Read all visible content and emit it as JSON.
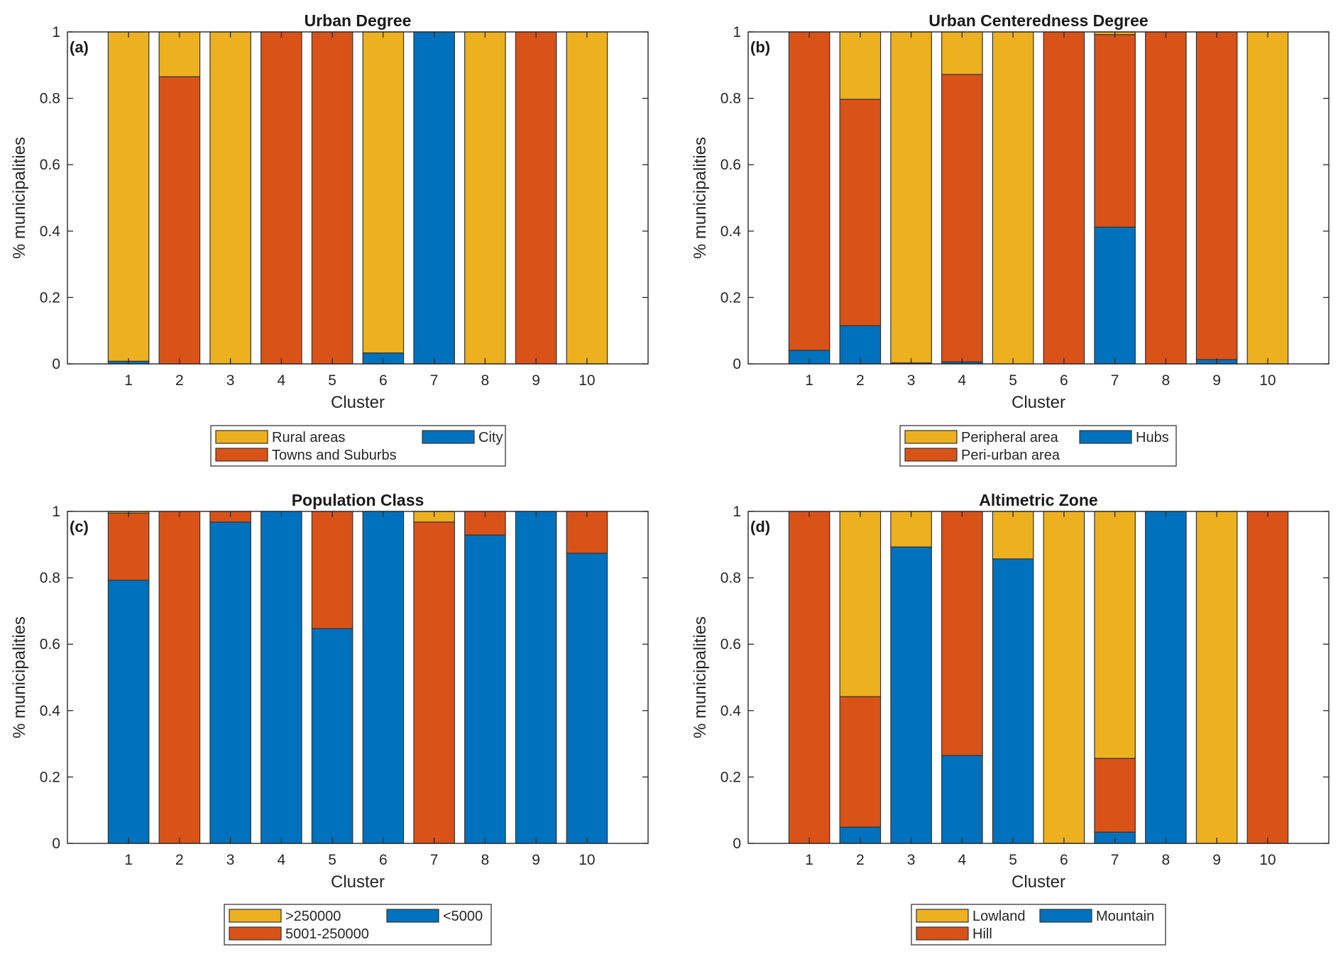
{
  "figure": {
    "colors": {
      "yellow": "#EDB120",
      "orange": "#D95319",
      "blue": "#0072BD",
      "edge": "#333333"
    }
  },
  "chart_data": [
    {
      "id": "a",
      "type": "bar",
      "stacked": true,
      "title": "Urban Degree",
      "panel_label": "(a)",
      "xlabel": "Cluster",
      "ylabel": "% municipalities",
      "categories": [
        "1",
        "2",
        "3",
        "4",
        "5",
        "6",
        "7",
        "8",
        "9",
        "10"
      ],
      "ylim": [
        0,
        1
      ],
      "xlim": [
        -0.2,
        11.2
      ],
      "yticks": [
        0,
        0.2,
        0.4,
        0.6,
        0.8,
        1
      ],
      "ytick_labels": [
        "0",
        "0.2",
        "0.4",
        "0.6",
        "0.8",
        "1"
      ],
      "grid": false,
      "legend_position": "below-center",
      "legend_order": [
        0,
        2,
        1
      ],
      "series": [
        {
          "name": "City",
          "color": "blue",
          "values": [
            0.008,
            0,
            0,
            0,
            0,
            0.033,
            1,
            0,
            0,
            0
          ]
        },
        {
          "name": "Towns and Suburbs",
          "color": "orange",
          "values": [
            0,
            0.865,
            0,
            1,
            1,
            0,
            0,
            0,
            1,
            0
          ]
        },
        {
          "name": "Rural areas",
          "color": "yellow",
          "values": [
            0.992,
            0.135,
            1,
            0,
            0,
            0.967,
            0,
            1,
            0,
            1
          ]
        }
      ]
    },
    {
      "id": "b",
      "type": "bar",
      "stacked": true,
      "title": "Urban Centeredness Degree",
      "panel_label": "(b)",
      "xlabel": "Cluster",
      "ylabel": "% municipalities",
      "categories": [
        "1",
        "2",
        "3",
        "4",
        "5",
        "6",
        "7",
        "8",
        "9",
        "10"
      ],
      "ylim": [
        0,
        1
      ],
      "xlim": [
        -0.2,
        11.2
      ],
      "yticks": [
        0,
        0.2,
        0.4,
        0.6,
        0.8,
        1
      ],
      "ytick_labels": [
        "0",
        "0.2",
        "0.4",
        "0.6",
        "0.8",
        "1"
      ],
      "grid": false,
      "legend_position": "below-center",
      "series": [
        {
          "name": "Hubs",
          "color": "blue",
          "values": [
            0.041,
            0.115,
            0.003,
            0.006,
            0,
            0,
            0.412,
            0,
            0.013,
            0
          ]
        },
        {
          "name": "Peri-urban area",
          "color": "orange",
          "values": [
            0.959,
            0.682,
            0,
            0.866,
            0,
            1,
            0.58,
            1,
            0.987,
            0
          ]
        },
        {
          "name": "Peripheral area",
          "color": "yellow",
          "values": [
            0,
            0.203,
            0.997,
            0.128,
            1,
            0,
            0.008,
            0,
            0,
            1
          ]
        }
      ]
    },
    {
      "id": "c",
      "type": "bar",
      "stacked": true,
      "title": "Population Class",
      "panel_label": "(c)",
      "xlabel": "Cluster",
      "ylabel": "% municipalities",
      "categories": [
        "1",
        "2",
        "3",
        "4",
        "5",
        "6",
        "7",
        "8",
        "9",
        "10"
      ],
      "ylim": [
        0,
        1
      ],
      "xlim": [
        -0.2,
        11.2
      ],
      "yticks": [
        0,
        0.2,
        0.4,
        0.6,
        0.8,
        1
      ],
      "ytick_labels": [
        "0",
        "0.2",
        "0.4",
        "0.6",
        "0.8",
        "1"
      ],
      "grid": false,
      "legend_position": "below-center",
      "series": [
        {
          "name": "<5000",
          "color": "blue",
          "values": [
            0.793,
            0,
            0.968,
            1,
            0.647,
            1,
            0,
            0.929,
            1,
            0.874
          ]
        },
        {
          "name": "5001-250000",
          "color": "orange",
          "values": [
            0.202,
            1,
            0.032,
            0,
            0.353,
            0,
            0.968,
            0.071,
            0,
            0.126
          ]
        },
        {
          "name": ">250000",
          "color": "yellow",
          "values": [
            0.005,
            0,
            0,
            0,
            0,
            0,
            0.032,
            0,
            0,
            0
          ]
        }
      ]
    },
    {
      "id": "d",
      "type": "bar",
      "stacked": true,
      "title": "Altimetric Zone",
      "panel_label": "(d)",
      "xlabel": "Cluster",
      "ylabel": "% municipalities",
      "categories": [
        "1",
        "2",
        "3",
        "4",
        "5",
        "6",
        "7",
        "8",
        "9",
        "10"
      ],
      "ylim": [
        0,
        1
      ],
      "xlim": [
        -0.2,
        11.2
      ],
      "yticks": [
        0,
        0.2,
        0.4,
        0.6,
        0.8,
        1
      ],
      "ytick_labels": [
        "0",
        "0.2",
        "0.4",
        "0.6",
        "0.8",
        "1"
      ],
      "grid": false,
      "legend_position": "below-center",
      "series": [
        {
          "name": "Mountain",
          "color": "blue",
          "values": [
            0,
            0.049,
            0.893,
            0.265,
            0.857,
            0,
            0.034,
            1,
            0,
            0
          ]
        },
        {
          "name": "Hill",
          "color": "orange",
          "values": [
            1,
            0.393,
            0,
            0.735,
            0,
            0,
            0.222,
            0,
            0,
            1
          ]
        },
        {
          "name": "Lowland",
          "color": "yellow",
          "values": [
            0,
            0.558,
            0.107,
            0,
            0.143,
            1,
            0.744,
            0,
            1,
            0
          ]
        }
      ]
    }
  ]
}
